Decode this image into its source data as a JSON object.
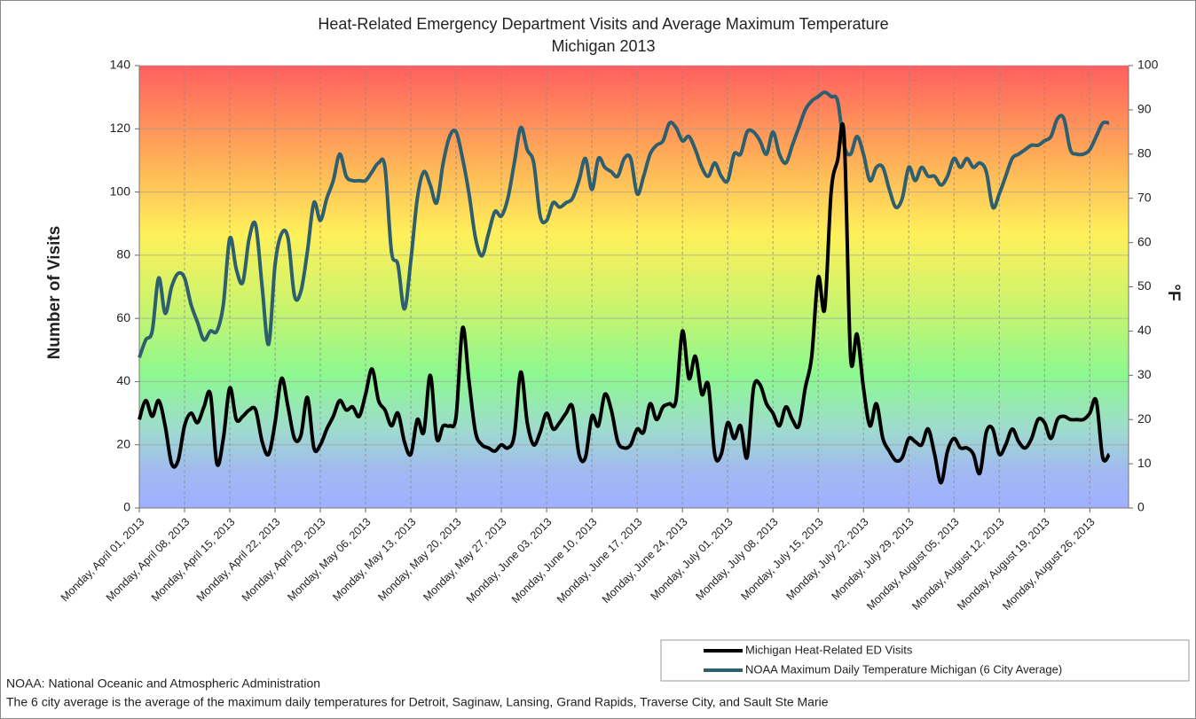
{
  "chart_data": {
    "type": "line",
    "title": "Heat-Related Emergency Department Visits and Average Maximum Temperature",
    "subtitle": "Michigan 2013",
    "y_label": "Number of Visits",
    "y2_label": "°F",
    "categories": [
      "Monday, April 01, 2013",
      null,
      null,
      null,
      null,
      null,
      null,
      "Monday, April 08, 2013",
      null,
      null,
      null,
      null,
      null,
      null,
      "Monday, April 15, 2013",
      null,
      null,
      null,
      null,
      null,
      null,
      "Monday, April 22, 2013",
      null,
      null,
      null,
      null,
      null,
      null,
      "Monday, April 29, 2013",
      null,
      null,
      null,
      null,
      null,
      null,
      "Monday, May 06, 2013",
      null,
      null,
      null,
      null,
      null,
      null,
      "Monday, May 13, 2013",
      null,
      null,
      null,
      null,
      null,
      null,
      "Monday, May 20, 2013",
      null,
      null,
      null,
      null,
      null,
      null,
      "Monday, May 27, 2013",
      null,
      null,
      null,
      null,
      null,
      null,
      "Monday, June 03, 2013",
      null,
      null,
      null,
      null,
      null,
      null,
      "Monday, June 10, 2013",
      null,
      null,
      null,
      null,
      null,
      null,
      "Monday, June 17, 2013",
      null,
      null,
      null,
      null,
      null,
      null,
      "Monday, June 24, 2013",
      null,
      null,
      null,
      null,
      null,
      null,
      "Monday, July 01, 2013",
      null,
      null,
      null,
      null,
      null,
      null,
      "Monday, July 08, 2013",
      null,
      null,
      null,
      null,
      null,
      null,
      "Monday, July 15, 2013",
      null,
      null,
      null,
      null,
      null,
      null,
      "Monday, July 22, 2013",
      null,
      null,
      null,
      null,
      null,
      null,
      "Monday, July 29, 2013",
      null,
      null,
      null,
      null,
      null,
      null,
      "Monday, August 05, 2013",
      null,
      null,
      null,
      null,
      null,
      null,
      "Monday, August 12, 2013",
      null,
      null,
      null,
      null,
      null,
      null,
      "Monday, August 19, 2013",
      null,
      null,
      null,
      null,
      null,
      null,
      "Monday, August 26, 2013",
      null,
      null,
      null,
      null,
      null
    ],
    "series": [
      {
        "name": "Michigan Heat-Related ED Visits",
        "color": "#000000",
        "axis": "y",
        "values": [
          28,
          34,
          29,
          34,
          26,
          14,
          15,
          26,
          30,
          27,
          32,
          36,
          14,
          22,
          38,
          28,
          29,
          31,
          31,
          21,
          17,
          27,
          41,
          32,
          22,
          23,
          35,
          19,
          20,
          25,
          29,
          34,
          31,
          32,
          29,
          36,
          44,
          34,
          31,
          26,
          30,
          21,
          17,
          28,
          24,
          42,
          22,
          26,
          26,
          29,
          57,
          40,
          24,
          20,
          19,
          18,
          20,
          19,
          23,
          43,
          27,
          20,
          24,
          30,
          25,
          27,
          30,
          32,
          17,
          16,
          29,
          26,
          36,
          31,
          21,
          19,
          20,
          25,
          24,
          33,
          28,
          32,
          33,
          34,
          56,
          41,
          48,
          36,
          39,
          17,
          17,
          27,
          22,
          26,
          16,
          38,
          39,
          33,
          30,
          26,
          32,
          28,
          26,
          38,
          48,
          73,
          63,
          100,
          110,
          118,
          48,
          55,
          38,
          26,
          33,
          22,
          18,
          15,
          16,
          22,
          21,
          20,
          25,
          17,
          8,
          18,
          22,
          19,
          19,
          17,
          11,
          24,
          25,
          17,
          20,
          25,
          21,
          19,
          22,
          28,
          27,
          22,
          28,
          29,
          28,
          28,
          28,
          30,
          34,
          16,
          17,
          null,
          null
        ]
      },
      {
        "name": "NOAA Maximum Daily Temperature Michigan (6 City Average)",
        "color": "#2e5f6f",
        "axis": "y2",
        "values": [
          34,
          38,
          40,
          52,
          44,
          50,
          53,
          52,
          46,
          42,
          38,
          40,
          40,
          46,
          61,
          54,
          51,
          61,
          64,
          50,
          37,
          55,
          62,
          61,
          48,
          49,
          58,
          69,
          65,
          70,
          74,
          80,
          75,
          74,
          74,
          74,
          76,
          78,
          77,
          58,
          55,
          45,
          56,
          70,
          76,
          73,
          69,
          78,
          84,
          85,
          79,
          71,
          61,
          57,
          62,
          67,
          66,
          70,
          78,
          86,
          81,
          78,
          66,
          65,
          69,
          68,
          69,
          70,
          74,
          79,
          72,
          79,
          77,
          76,
          75,
          79,
          79,
          71,
          75,
          80,
          82,
          83,
          87,
          86,
          83,
          84,
          81,
          77,
          75,
          78,
          75,
          74,
          80,
          80,
          85,
          85,
          83,
          80,
          85,
          80,
          78,
          82,
          86,
          90,
          92,
          93,
          94,
          93,
          92,
          82,
          80,
          84,
          80,
          74,
          77,
          77,
          72,
          68,
          70,
          77,
          74,
          77,
          75,
          75,
          73,
          75,
          79,
          77,
          79,
          77,
          78,
          76,
          68,
          71,
          75,
          79,
          80,
          81,
          82,
          82,
          83,
          84,
          88,
          88,
          81,
          80,
          80,
          81,
          84,
          87,
          87,
          null,
          null
        ]
      }
    ],
    "ylim": [
      0,
      140
    ],
    "yticks": [
      0,
      20,
      40,
      60,
      80,
      100,
      120,
      140
    ],
    "y2lim": [
      0,
      100
    ],
    "y2ticks": [
      0,
      10,
      20,
      30,
      40,
      50,
      60,
      70,
      80,
      90,
      100
    ],
    "grid": true,
    "legend": "bottom-right",
    "notes": [
      "NOAA: National Oceanic and Atmospheric Administration",
      "The 6 city average is the average of the maximum daily temperatures for Detroit, Saginaw, Lansing, Grand Rapids, Traverse City, and Sault Ste Marie"
    ]
  }
}
